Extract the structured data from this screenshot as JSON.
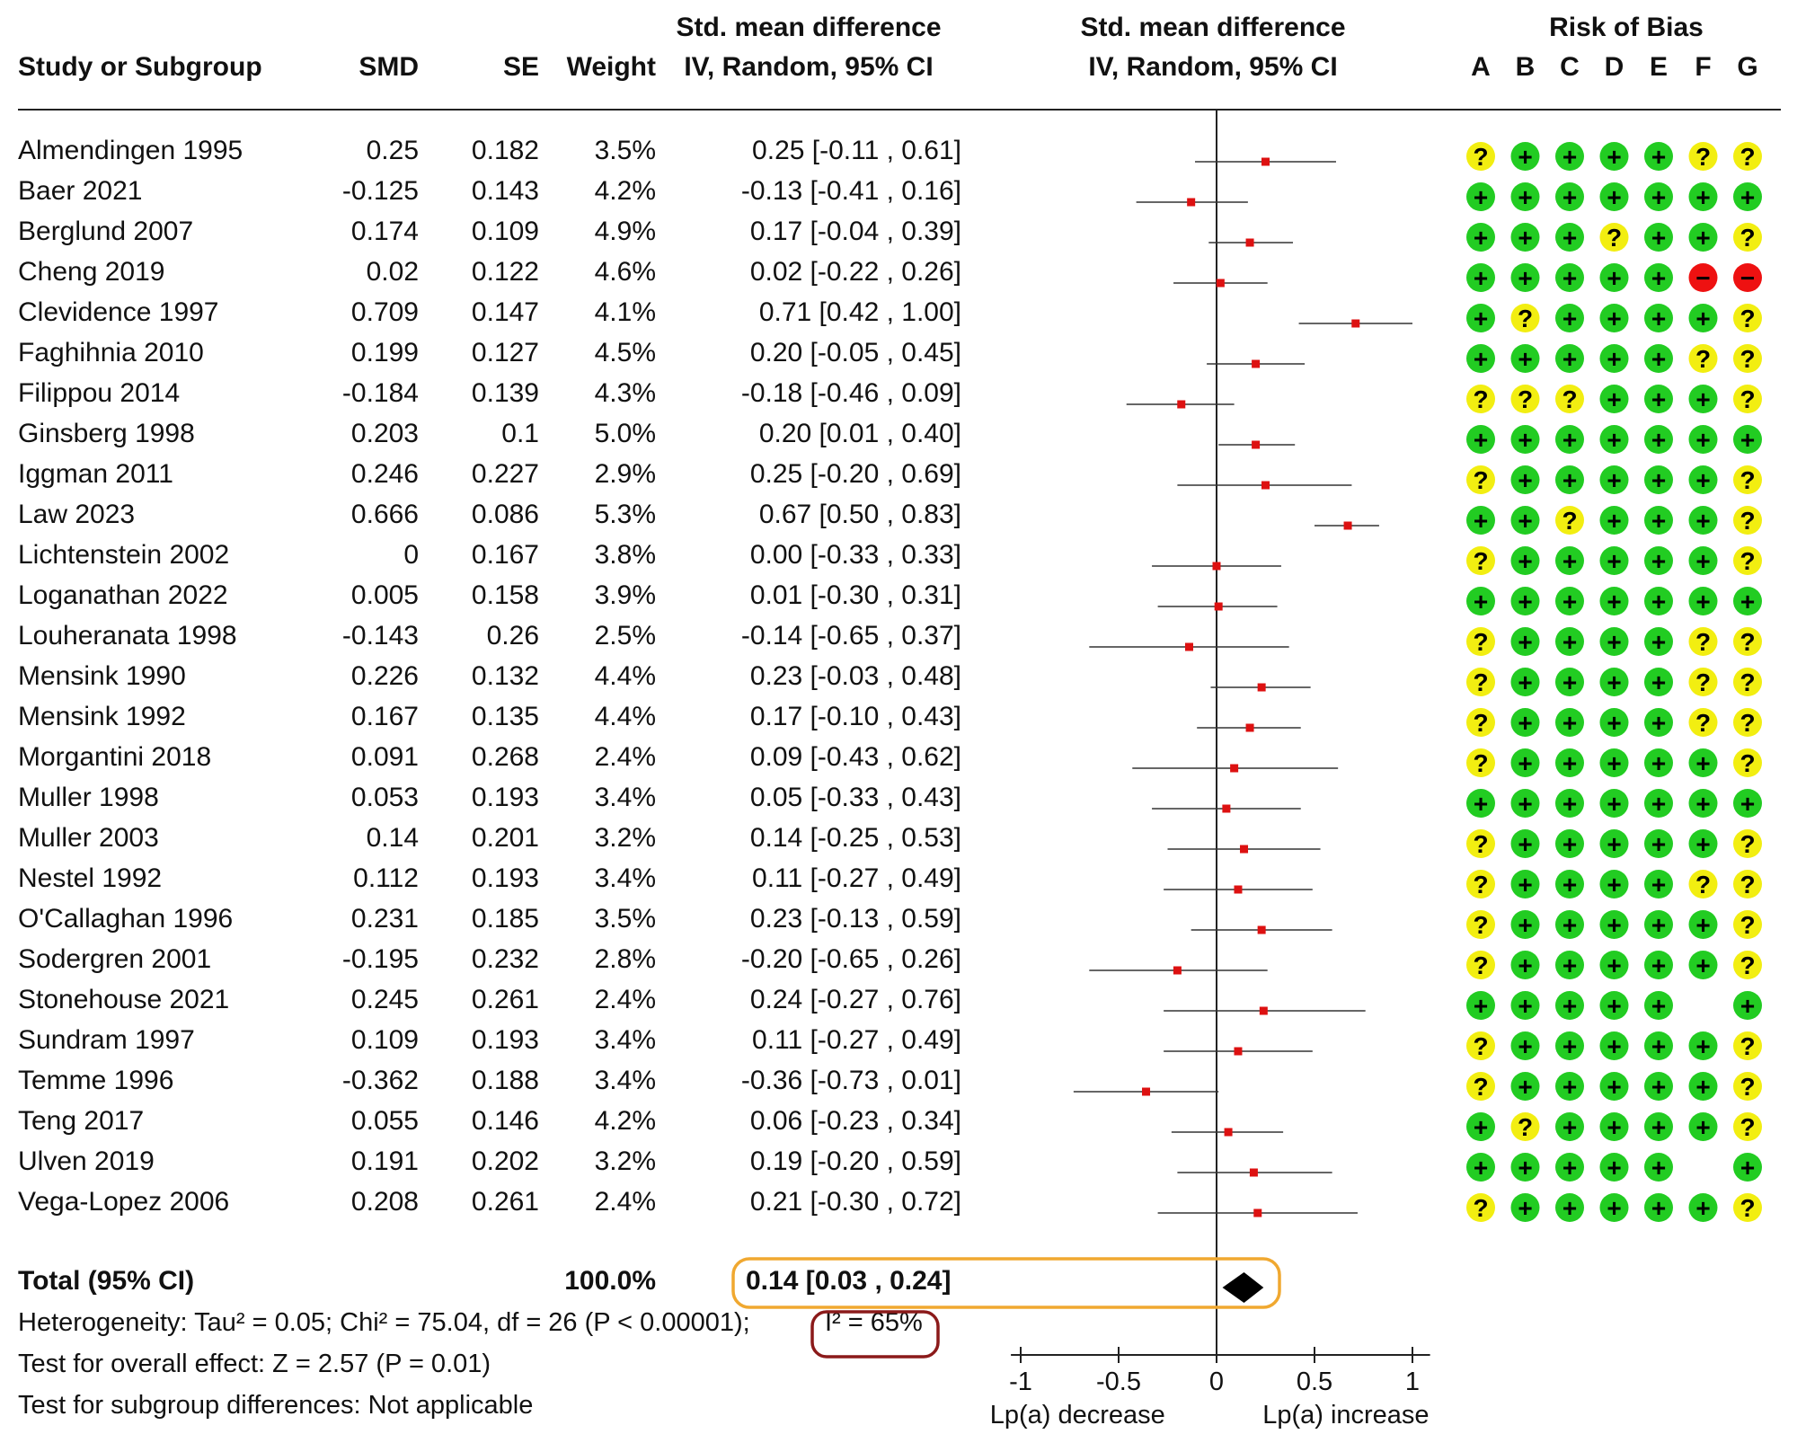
{
  "header": {
    "study": "Study or Subgroup",
    "smd": "SMD",
    "se": "SE",
    "weight": "Weight",
    "ci_line1": "Std. mean difference",
    "ci_line2": "IV, Random, 95% CI",
    "plot_line1": "Std. mean difference",
    "plot_line2": "IV, Random, 95% CI",
    "rob_title": "Risk of Bias",
    "rob_letters": [
      "A",
      "B",
      "C",
      "D",
      "E",
      "F",
      "G"
    ]
  },
  "colors": {
    "low_risk": "#22cc22",
    "unclear_risk": "#f2ee11",
    "high_risk": "#ee1111",
    "point": "#dd1111",
    "highlight_total": "#f0a830",
    "highlight_i2": "#8b1a1a"
  },
  "rob_symbols": {
    "+": "+",
    "?": "?",
    "-": "−"
  },
  "studies": [
    {
      "name": "Almendingen 1995",
      "smd": "0.25",
      "se": "0.182",
      "weight": "3.5%",
      "ci": "0.25 [-0.11 , 0.61]",
      "rob": [
        "?",
        "+",
        "+",
        "+",
        "+",
        "?",
        "?"
      ]
    },
    {
      "name": "Baer 2021",
      "smd": "-0.125",
      "se": "0.143",
      "weight": "4.2%",
      "ci": "-0.13 [-0.41 , 0.16]",
      "rob": [
        "+",
        "+",
        "+",
        "+",
        "+",
        "+",
        "+"
      ]
    },
    {
      "name": "Berglund 2007",
      "smd": "0.174",
      "se": "0.109",
      "weight": "4.9%",
      "ci": "0.17 [-0.04 , 0.39]",
      "rob": [
        "+",
        "+",
        "+",
        "?",
        "+",
        "+",
        "?"
      ]
    },
    {
      "name": "Cheng 2019",
      "smd": "0.02",
      "se": "0.122",
      "weight": "4.6%",
      "ci": "0.02 [-0.22 , 0.26]",
      "rob": [
        "+",
        "+",
        "+",
        "+",
        "+",
        "-",
        "-"
      ]
    },
    {
      "name": "Clevidence 1997",
      "smd": "0.709",
      "se": "0.147",
      "weight": "4.1%",
      "ci": "0.71 [0.42 , 1.00]",
      "rob": [
        "+",
        "?",
        "+",
        "+",
        "+",
        "+",
        "?"
      ]
    },
    {
      "name": "Faghihnia 2010",
      "smd": "0.199",
      "se": "0.127",
      "weight": "4.5%",
      "ci": "0.20 [-0.05 , 0.45]",
      "rob": [
        "+",
        "+",
        "+",
        "+",
        "+",
        "?",
        "?"
      ]
    },
    {
      "name": "Filippou 2014",
      "smd": "-0.184",
      "se": "0.139",
      "weight": "4.3%",
      "ci": "-0.18 [-0.46 , 0.09]",
      "rob": [
        "?",
        "?",
        "?",
        "+",
        "+",
        "+",
        "?"
      ]
    },
    {
      "name": "Ginsberg 1998",
      "smd": "0.203",
      "se": "0.1",
      "weight": "5.0%",
      "ci": "0.20 [0.01 , 0.40]",
      "rob": [
        "+",
        "+",
        "+",
        "+",
        "+",
        "+",
        "+"
      ]
    },
    {
      "name": "Iggman 2011",
      "smd": "0.246",
      "se": "0.227",
      "weight": "2.9%",
      "ci": "0.25 [-0.20 , 0.69]",
      "rob": [
        "?",
        "+",
        "+",
        "+",
        "+",
        "+",
        "?"
      ]
    },
    {
      "name": "Law 2023",
      "smd": "0.666",
      "se": "0.086",
      "weight": "5.3%",
      "ci": "0.67 [0.50 , 0.83]",
      "rob": [
        "+",
        "+",
        "?",
        "+",
        "+",
        "+",
        "?"
      ]
    },
    {
      "name": "Lichtenstein 2002",
      "smd": "0",
      "se": "0.167",
      "weight": "3.8%",
      "ci": "0.00 [-0.33 , 0.33]",
      "rob": [
        "?",
        "+",
        "+",
        "+",
        "+",
        "+",
        "?"
      ]
    },
    {
      "name": "Loganathan 2022",
      "smd": "0.005",
      "se": "0.158",
      "weight": "3.9%",
      "ci": "0.01 [-0.30 , 0.31]",
      "rob": [
        "+",
        "+",
        "+",
        "+",
        "+",
        "+",
        "+"
      ]
    },
    {
      "name": "Louheranata 1998",
      "smd": "-0.143",
      "se": "0.26",
      "weight": "2.5%",
      "ci": "-0.14 [-0.65 , 0.37]",
      "rob": [
        "?",
        "+",
        "+",
        "+",
        "+",
        "?",
        "?"
      ]
    },
    {
      "name": "Mensink 1990",
      "smd": "0.226",
      "se": "0.132",
      "weight": "4.4%",
      "ci": "0.23 [-0.03 , 0.48]",
      "rob": [
        "?",
        "+",
        "+",
        "+",
        "+",
        "?",
        "?"
      ]
    },
    {
      "name": "Mensink 1992",
      "smd": "0.167",
      "se": "0.135",
      "weight": "4.4%",
      "ci": "0.17 [-0.10 , 0.43]",
      "rob": [
        "?",
        "+",
        "+",
        "+",
        "+",
        "?",
        "?"
      ]
    },
    {
      "name": "Morgantini 2018",
      "smd": "0.091",
      "se": "0.268",
      "weight": "2.4%",
      "ci": "0.09 [-0.43 , 0.62]",
      "rob": [
        "?",
        "+",
        "+",
        "+",
        "+",
        "+",
        "?"
      ]
    },
    {
      "name": "Muller 1998",
      "smd": "0.053",
      "se": "0.193",
      "weight": "3.4%",
      "ci": "0.05 [-0.33 , 0.43]",
      "rob": [
        "+",
        "+",
        "+",
        "+",
        "+",
        "+",
        "+"
      ]
    },
    {
      "name": "Muller 2003",
      "smd": "0.14",
      "se": "0.201",
      "weight": "3.2%",
      "ci": "0.14 [-0.25 , 0.53]",
      "rob": [
        "?",
        "+",
        "+",
        "+",
        "+",
        "+",
        "?"
      ]
    },
    {
      "name": "Nestel 1992",
      "smd": "0.112",
      "se": "0.193",
      "weight": "3.4%",
      "ci": "0.11 [-0.27 , 0.49]",
      "rob": [
        "?",
        "+",
        "+",
        "+",
        "+",
        "?",
        "?"
      ]
    },
    {
      "name": "O'Callaghan 1996",
      "smd": "0.231",
      "se": "0.185",
      "weight": "3.5%",
      "ci": "0.23 [-0.13 , 0.59]",
      "rob": [
        "?",
        "+",
        "+",
        "+",
        "+",
        "+",
        "?"
      ]
    },
    {
      "name": "Sodergren 2001",
      "smd": "-0.195",
      "se": "0.232",
      "weight": "2.8%",
      "ci": "-0.20 [-0.65 , 0.26]",
      "rob": [
        "?",
        "+",
        "+",
        "+",
        "+",
        "+",
        "?"
      ]
    },
    {
      "name": "Stonehouse 2021",
      "smd": "0.245",
      "se": "0.261",
      "weight": "2.4%",
      "ci": "0.24 [-0.27 , 0.76]",
      "rob": [
        "+",
        "+",
        "+",
        "+",
        "+",
        "",
        "+"
      ]
    },
    {
      "name": "Sundram 1997",
      "smd": "0.109",
      "se": "0.193",
      "weight": "3.4%",
      "ci": "0.11 [-0.27 , 0.49]",
      "rob": [
        "?",
        "+",
        "+",
        "+",
        "+",
        "+",
        "?"
      ]
    },
    {
      "name": "Temme 1996",
      "smd": "-0.362",
      "se": "0.188",
      "weight": "3.4%",
      "ci": "-0.36 [-0.73 , 0.01]",
      "rob": [
        "?",
        "+",
        "+",
        "+",
        "+",
        "+",
        "?"
      ]
    },
    {
      "name": "Teng 2017",
      "smd": "0.055",
      "se": "0.146",
      "weight": "4.2%",
      "ci": "0.06 [-0.23 , 0.34]",
      "rob": [
        "+",
        "?",
        "+",
        "+",
        "+",
        "+",
        "?"
      ]
    },
    {
      "name": "Ulven 2019",
      "smd": "0.191",
      "se": "0.202",
      "weight": "3.2%",
      "ci": "0.19 [-0.20 , 0.59]",
      "rob": [
        "+",
        "+",
        "+",
        "+",
        "+",
        "",
        "+"
      ]
    },
    {
      "name": "Vega-Lopez 2006",
      "smd": "0.208",
      "se": "0.261",
      "weight": "2.4%",
      "ci": "0.21 [-0.30 , 0.72]",
      "rob": [
        "?",
        "+",
        "+",
        "+",
        "+",
        "+",
        "?"
      ]
    }
  ],
  "total": {
    "label": "Total (95% CI)",
    "weight": "100.0%",
    "ci": "0.14 [0.03 , 0.24]"
  },
  "footer": {
    "heterogeneity": "Heterogeneity: Tau² = 0.05; Chi² = 75.04, df = 26 (P < 0.00001);",
    "i2": "I² = 65%",
    "overall": "Test for overall effect: Z = 2.57 (P = 0.01)",
    "subgroup": "Test for subgroup differences: Not applicable"
  },
  "axis": {
    "left_label": "Lp(a) decrease",
    "right_label": "Lp(a) increase"
  },
  "chart_data": {
    "type": "forest",
    "xlim": [
      -1,
      1
    ],
    "ticks": [
      -1,
      -0.5,
      0,
      0.5,
      1
    ],
    "tick_labels": [
      "-1",
      "-0.5",
      "0",
      "0.5",
      "1"
    ],
    "points": [
      {
        "est": 0.25,
        "lo": -0.11,
        "hi": 0.61
      },
      {
        "est": -0.13,
        "lo": -0.41,
        "hi": 0.16
      },
      {
        "est": 0.17,
        "lo": -0.04,
        "hi": 0.39
      },
      {
        "est": 0.02,
        "lo": -0.22,
        "hi": 0.26
      },
      {
        "est": 0.71,
        "lo": 0.42,
        "hi": 1.0
      },
      {
        "est": 0.2,
        "lo": -0.05,
        "hi": 0.45
      },
      {
        "est": -0.18,
        "lo": -0.46,
        "hi": 0.09
      },
      {
        "est": 0.2,
        "lo": 0.01,
        "hi": 0.4
      },
      {
        "est": 0.25,
        "lo": -0.2,
        "hi": 0.69
      },
      {
        "est": 0.67,
        "lo": 0.5,
        "hi": 0.83
      },
      {
        "est": 0.0,
        "lo": -0.33,
        "hi": 0.33
      },
      {
        "est": 0.01,
        "lo": -0.3,
        "hi": 0.31
      },
      {
        "est": -0.14,
        "lo": -0.65,
        "hi": 0.37
      },
      {
        "est": 0.23,
        "lo": -0.03,
        "hi": 0.48
      },
      {
        "est": 0.17,
        "lo": -0.1,
        "hi": 0.43
      },
      {
        "est": 0.09,
        "lo": -0.43,
        "hi": 0.62
      },
      {
        "est": 0.05,
        "lo": -0.33,
        "hi": 0.43
      },
      {
        "est": 0.14,
        "lo": -0.25,
        "hi": 0.53
      },
      {
        "est": 0.11,
        "lo": -0.27,
        "hi": 0.49
      },
      {
        "est": 0.23,
        "lo": -0.13,
        "hi": 0.59
      },
      {
        "est": -0.2,
        "lo": -0.65,
        "hi": 0.26
      },
      {
        "est": 0.24,
        "lo": -0.27,
        "hi": 0.76
      },
      {
        "est": 0.11,
        "lo": -0.27,
        "hi": 0.49
      },
      {
        "est": -0.36,
        "lo": -0.73,
        "hi": 0.01
      },
      {
        "est": 0.06,
        "lo": -0.23,
        "hi": 0.34
      },
      {
        "est": 0.19,
        "lo": -0.2,
        "hi": 0.59
      },
      {
        "est": 0.21,
        "lo": -0.3,
        "hi": 0.72
      }
    ],
    "pooled": {
      "est": 0.14,
      "lo": 0.03,
      "hi": 0.24
    }
  }
}
